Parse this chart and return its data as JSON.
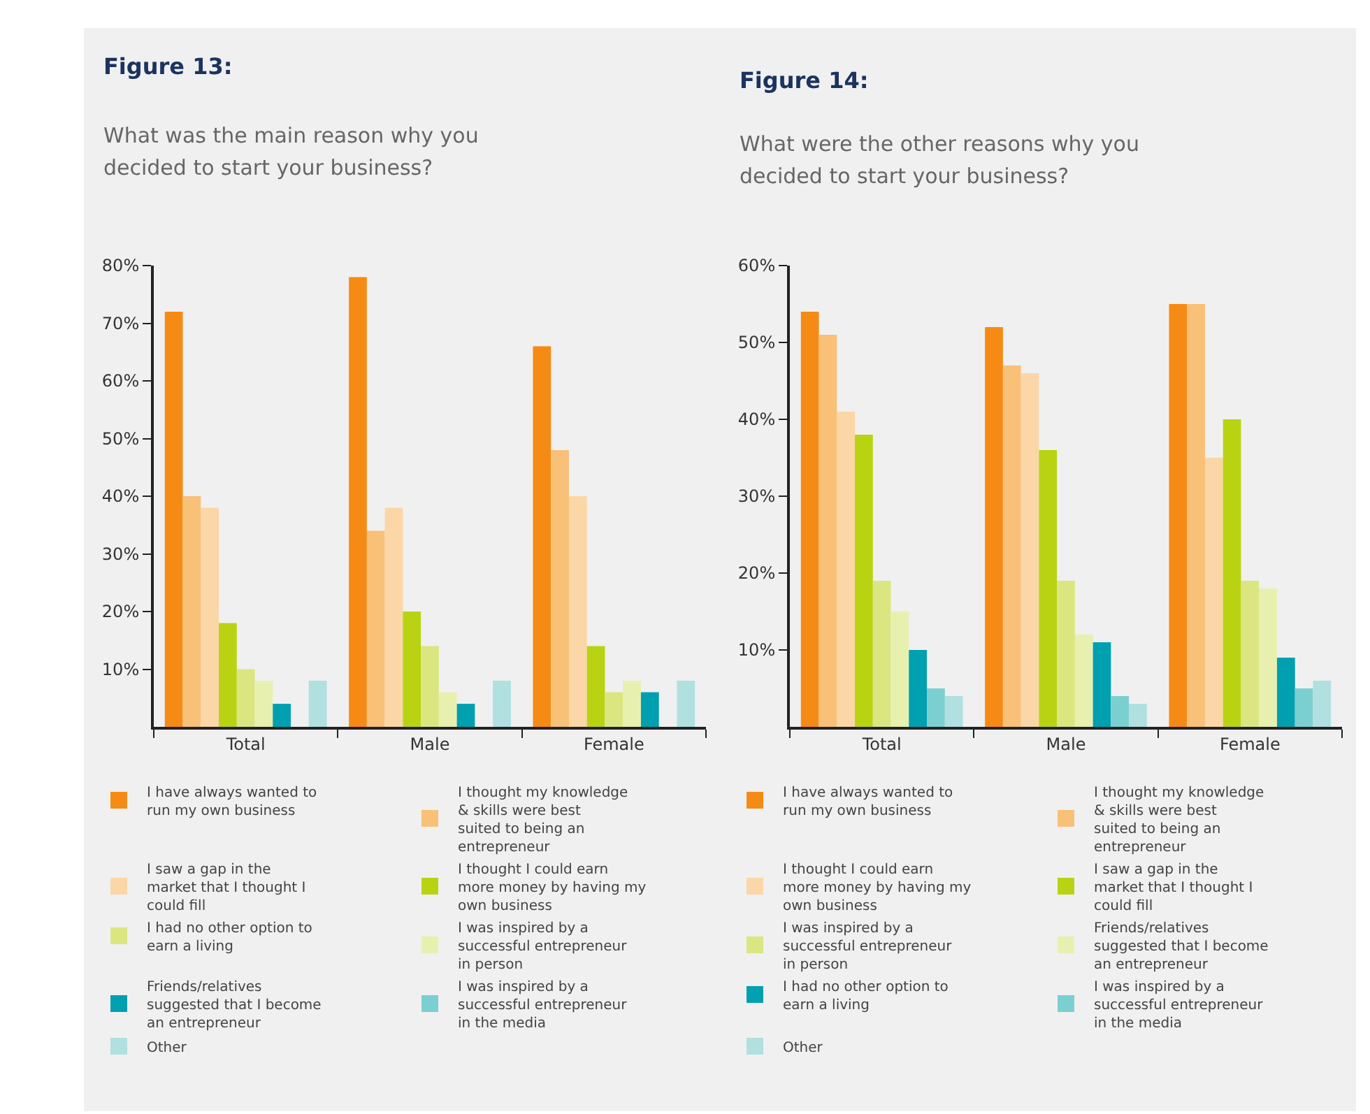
{
  "chart_data": [
    {
      "type": "bar",
      "title": "Figure 13:",
      "subtitle": "What was the main reason why you decided to start your business?",
      "categories": [
        "Total",
        "Male",
        "Female"
      ],
      "ylim": [
        0,
        80
      ],
      "yticks": [
        {
          "value": 10,
          "label": "10%"
        },
        {
          "value": 20,
          "label": "20%"
        },
        {
          "value": 30,
          "label": "30%"
        },
        {
          "value": 40,
          "label": "40%"
        },
        {
          "value": 50,
          "label": "50%"
        },
        {
          "value": 60,
          "label": "60%"
        },
        {
          "value": 70,
          "label": "70%"
        },
        {
          "value": 80,
          "label": "80%"
        }
      ],
      "legend": "bottom",
      "series": [
        {
          "name": "I have always wanted to run my own business",
          "color": "#f58b14",
          "values": [
            72,
            78,
            66
          ]
        },
        {
          "name": "I thought my knowledge & skills were best suited to being an entrepreneur",
          "color": "#f9c077",
          "values": [
            40,
            34,
            48
          ]
        },
        {
          "name": "I saw a gap in the market that I thought I could fill",
          "color": "#fbd6a6",
          "values": [
            38,
            38,
            40
          ]
        },
        {
          "name": "I thought I could earn more money by having my own business",
          "color": "#b9d313",
          "values": [
            18,
            20,
            14
          ]
        },
        {
          "name": "I had no other option to earn a living",
          "color": "#dbe680",
          "values": [
            10,
            14,
            6
          ]
        },
        {
          "name": "I was inspired by a successful entrepreneur in person",
          "color": "#e8f0b0",
          "values": [
            8,
            6,
            8
          ]
        },
        {
          "name": "Friends/relatives suggested that I become an entrepreneur",
          "color": "#00a0b0",
          "values": [
            4,
            4,
            6
          ]
        },
        {
          "name": "I was inspired by a successful entrepreneur in the media",
          "color": "#7ccfd0",
          "values": [
            0,
            0,
            0
          ]
        },
        {
          "name": "Other",
          "color": "#b0e0e0",
          "values": [
            8,
            8,
            8
          ]
        }
      ]
    },
    {
      "type": "bar",
      "title": "Figure 14:",
      "subtitle": "What were the other reasons why you decided to start your business?",
      "categories": [
        "Total",
        "Male",
        "Female"
      ],
      "ylim": [
        0,
        60
      ],
      "yticks": [
        {
          "value": 10,
          "label": "10%"
        },
        {
          "value": 20,
          "label": "20%"
        },
        {
          "value": 30,
          "label": "30%"
        },
        {
          "value": 40,
          "label": "40%"
        },
        {
          "value": 50,
          "label": "50%"
        },
        {
          "value": 60,
          "label": "60%"
        }
      ],
      "legend": "bottom",
      "series": [
        {
          "name": "I have always wanted to run my own business",
          "color": "#f58b14",
          "values": [
            54,
            52,
            55
          ]
        },
        {
          "name": "I thought my knowledge & skills were best suited to being an entrepreneur",
          "color": "#f9c077",
          "values": [
            51,
            47,
            55
          ]
        },
        {
          "name": "I thought I could earn more money by having my own business",
          "color": "#fbd6a6",
          "values": [
            41,
            46,
            35
          ]
        },
        {
          "name": "I saw a gap in the market that I thought I could fill",
          "color": "#b9d313",
          "values": [
            38,
            36,
            40
          ]
        },
        {
          "name": "I was inspired by a successful entrepreneur in person",
          "color": "#dbe680",
          "values": [
            19,
            19,
            19
          ]
        },
        {
          "name": "Friends/relatives suggested that I become an entrepreneur",
          "color": "#e8f0b0",
          "values": [
            15,
            12,
            18
          ]
        },
        {
          "name": "I had no other option to earn a living",
          "color": "#00a0b0",
          "values": [
            10,
            11,
            9
          ]
        },
        {
          "name": "I was inspired by a successful entrepreneur in the media",
          "color": "#7ccfd0",
          "values": [
            5,
            4,
            5
          ]
        },
        {
          "name": "Other",
          "color": "#b0e0e0",
          "values": [
            4,
            3,
            6
          ]
        }
      ]
    }
  ]
}
